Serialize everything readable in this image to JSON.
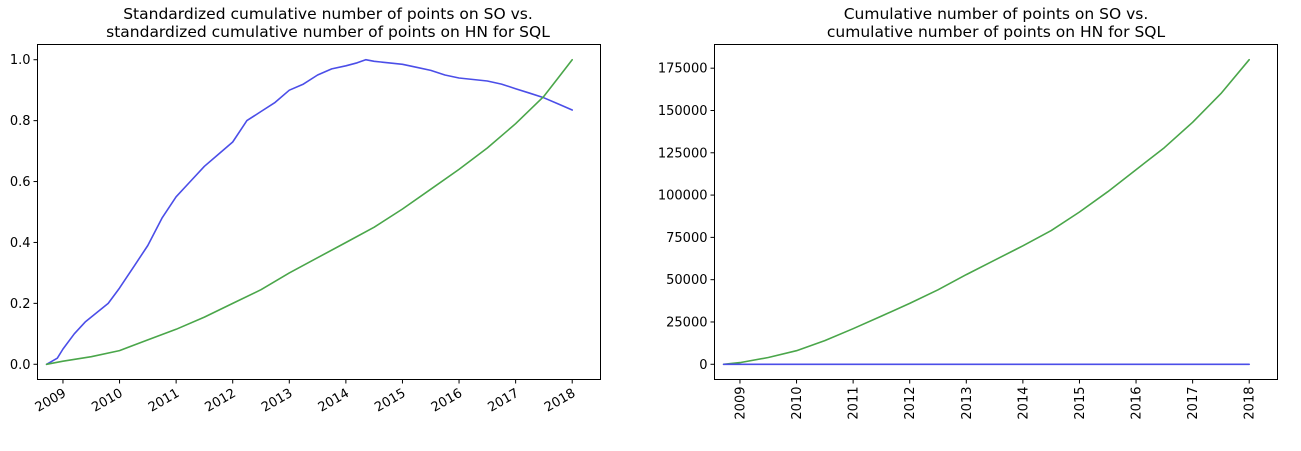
{
  "chart_data": [
    {
      "type": "line",
      "title": [
        "Standardized cumulative number of points on SO vs.",
        "standardized cumulative number of points on HN for SQL"
      ],
      "xlabel": "",
      "ylabel": "",
      "x_ticks": [
        2009,
        2010,
        2011,
        2012,
        2013,
        2014,
        2015,
        2016,
        2017,
        2018
      ],
      "x_tick_rotation": 30,
      "xlim": [
        2008.55,
        2018.5
      ],
      "y_ticks": [
        0.0,
        0.2,
        0.4,
        0.6,
        0.8,
        1.0
      ],
      "y_tick_labels": [
        "0.0",
        "0.2",
        "0.4",
        "0.6",
        "0.8",
        "1.0"
      ],
      "ylim": [
        -0.05,
        1.05
      ],
      "grid": false,
      "series": [
        {
          "color": "#4b4ee8",
          "x": [
            2008.71,
            2008.9,
            2009.0,
            2009.2,
            2009.4,
            2009.6,
            2009.8,
            2010.0,
            2010.25,
            2010.5,
            2010.75,
            2011.0,
            2011.25,
            2011.5,
            2011.75,
            2012.0,
            2012.25,
            2012.5,
            2012.75,
            2013.0,
            2013.25,
            2013.5,
            2013.75,
            2014.0,
            2014.2,
            2014.35,
            2014.5,
            2014.75,
            2015.0,
            2015.25,
            2015.5,
            2015.75,
            2016.0,
            2016.25,
            2016.5,
            2016.75,
            2017.0,
            2017.25,
            2017.5,
            2017.75,
            2018.0
          ],
          "y": [
            0.0,
            0.02,
            0.05,
            0.1,
            0.14,
            0.17,
            0.2,
            0.25,
            0.32,
            0.39,
            0.48,
            0.55,
            0.6,
            0.65,
            0.69,
            0.73,
            0.8,
            0.83,
            0.86,
            0.9,
            0.92,
            0.95,
            0.97,
            0.98,
            0.99,
            1.0,
            0.995,
            0.99,
            0.985,
            0.975,
            0.965,
            0.95,
            0.94,
            0.935,
            0.93,
            0.92,
            0.905,
            0.89,
            0.875,
            0.855,
            0.835
          ]
        },
        {
          "color": "#4aa64a",
          "x": [
            2008.71,
            2009.0,
            2009.5,
            2010.0,
            2010.5,
            2011.0,
            2011.5,
            2012.0,
            2012.5,
            2013.0,
            2013.5,
            2014.0,
            2014.5,
            2015.0,
            2015.5,
            2016.0,
            2016.5,
            2017.0,
            2017.5,
            2017.75,
            2018.0
          ],
          "y": [
            0.0,
            0.01,
            0.025,
            0.045,
            0.08,
            0.115,
            0.155,
            0.2,
            0.245,
            0.3,
            0.35,
            0.4,
            0.45,
            0.51,
            0.575,
            0.64,
            0.71,
            0.79,
            0.88,
            0.94,
            1.0
          ]
        }
      ]
    },
    {
      "type": "line",
      "title": [
        "Cumulative number of points on SO vs.",
        "cumulative number of points on HN for SQL"
      ],
      "xlabel": "",
      "ylabel": "",
      "x_ticks": [
        2009,
        2010,
        2011,
        2012,
        2013,
        2014,
        2015,
        2016,
        2017,
        2018
      ],
      "x_tick_rotation": 90,
      "xlim": [
        2008.55,
        2018.5
      ],
      "y_ticks": [
        0,
        25000,
        50000,
        75000,
        100000,
        125000,
        150000,
        175000
      ],
      "y_tick_labels": [
        "0",
        "25000",
        "50000",
        "75000",
        "100000",
        "125000",
        "150000",
        "175000"
      ],
      "ylim": [
        -9000,
        189000
      ],
      "grid": false,
      "series": [
        {
          "color": "#4aa64a",
          "x": [
            2008.71,
            2009.0,
            2009.5,
            2010.0,
            2010.5,
            2011.0,
            2011.5,
            2012.0,
            2012.5,
            2013.0,
            2013.5,
            2014.0,
            2014.5,
            2015.0,
            2015.5,
            2016.0,
            2016.5,
            2017.0,
            2017.5,
            2018.0
          ],
          "y": [
            0,
            1000,
            4000,
            8000,
            14000,
            21000,
            28500,
            36000,
            44000,
            53000,
            61500,
            70000,
            79000,
            90000,
            102000,
            115000,
            128000,
            143000,
            160000,
            180000
          ]
        },
        {
          "color": "#4b4ee8",
          "x": [
            2008.71,
            2018.0
          ],
          "y": [
            0,
            0
          ]
        }
      ]
    }
  ]
}
